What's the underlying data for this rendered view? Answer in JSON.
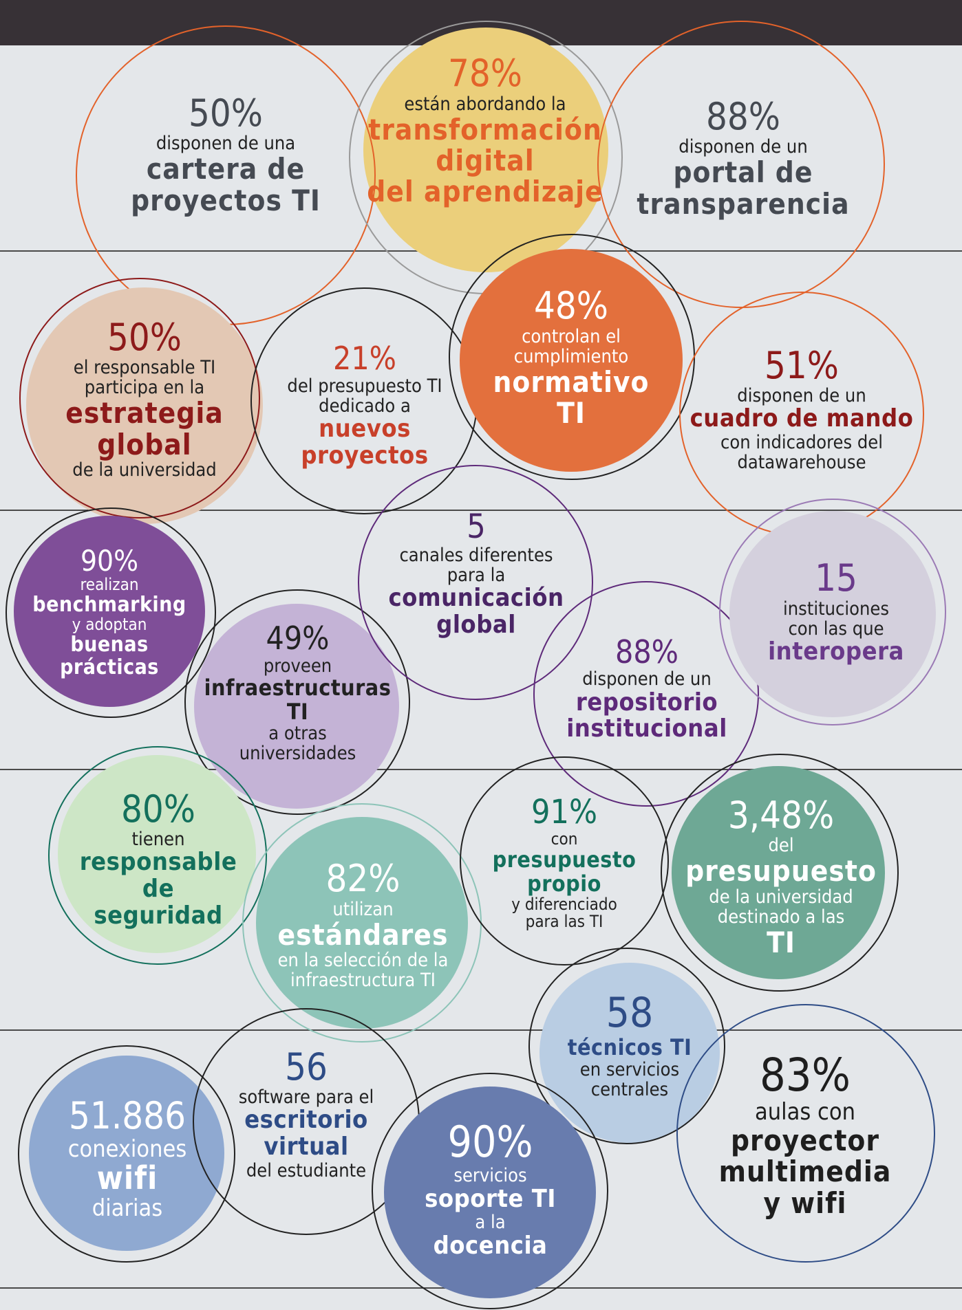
{
  "colors": {
    "background": "#e4e7ea",
    "top_bar": "#373136",
    "orange": "#e3622a",
    "dark_red": "#8d1a1a",
    "purple": "#5e2a7a",
    "green": "#13705c",
    "navy": "#2e4c86",
    "dark_gray": "#3e3e3e"
  },
  "stats": [
    {
      "number": "50%",
      "lines": [
        "disponen de una"
      ],
      "emphasis": [
        "cartera de",
        "proyectos TI"
      ]
    },
    {
      "number": "78%",
      "lines": [
        "están abordando la"
      ],
      "emphasis": [
        "transformación",
        "digital",
        "del aprendizaje"
      ]
    },
    {
      "number": "88%",
      "lines": [
        "disponen de un"
      ],
      "emphasis": [
        "portal de",
        "transparencia"
      ]
    },
    {
      "number": "50%",
      "lines": [
        "el responsable TI",
        "participa en la"
      ],
      "emphasis": [
        "estrategia",
        "global"
      ],
      "tail": [
        "de la universidad"
      ]
    },
    {
      "number": "21%",
      "lines": [
        "del presupuesto TI",
        "dedicado a"
      ],
      "emphasis": [
        "nuevos",
        "proyectos"
      ]
    },
    {
      "number": "48%",
      "lines": [
        "controlan el",
        "cumplimiento"
      ],
      "emphasis": [
        "normativo",
        "TI"
      ]
    },
    {
      "number": "51%",
      "lines": [
        "disponen de un"
      ],
      "emphasis": [
        "cuadro de mando"
      ],
      "tail": [
        "con indicadores del",
        "datawarehouse"
      ]
    },
    {
      "number": "90%",
      "lines": [
        "realizan"
      ],
      "emphasis": [
        "benchmarking"
      ],
      "tail": [
        "y adoptan"
      ],
      "emphasis2": [
        "buenas",
        "prácticas"
      ]
    },
    {
      "number": "5",
      "lines": [
        "canales diferentes",
        "para la"
      ],
      "emphasis": [
        "comunicación",
        "global"
      ]
    },
    {
      "number": "15",
      "lines": [
        "instituciones",
        "con las que"
      ],
      "emphasis": [
        "interopera"
      ]
    },
    {
      "number": "49%",
      "lines": [
        "proveen"
      ],
      "emphasis": [
        "infraestructuras",
        "TI"
      ],
      "tail": [
        "a otras",
        "universidades"
      ]
    },
    {
      "number": "88%",
      "lines": [
        "disponen de un"
      ],
      "emphasis": [
        "repositorio",
        "institucional"
      ]
    },
    {
      "number": "80%",
      "lines": [
        "tienen"
      ],
      "emphasis": [
        "responsable",
        "de",
        "seguridad"
      ]
    },
    {
      "number": "82%",
      "lines": [
        "utilizan"
      ],
      "emphasis": [
        "estándares"
      ],
      "tail": [
        "en la selección de la",
        "infraestructura TI"
      ]
    },
    {
      "number": "91%",
      "lines": [
        "con"
      ],
      "emphasis": [
        "presupuesto",
        "propio"
      ],
      "tail": [
        "y diferenciado",
        "para las TI"
      ]
    },
    {
      "number": "3,48%",
      "lines": [
        "del"
      ],
      "emphasis": [
        "presupuesto"
      ],
      "tail": [
        "de la universidad",
        "destinado a las"
      ],
      "emphasis2": [
        "TI"
      ]
    },
    {
      "number": "58",
      "lines": [],
      "emphasis": [
        "técnicos TI"
      ],
      "tail": [
        "en servicios",
        "centrales"
      ]
    },
    {
      "number": "56",
      "lines": [
        "software para el"
      ],
      "emphasis": [
        "escritorio",
        "virtual"
      ],
      "tail": [
        "del estudiante"
      ]
    },
    {
      "number": "51.886",
      "lines": [
        "conexiones"
      ],
      "emphasis": [
        "wifi"
      ],
      "tail": [
        "diarias"
      ]
    },
    {
      "number": "90%",
      "lines": [
        "servicios"
      ],
      "emphasis": [
        "soporte TI"
      ],
      "tail": [
        "a la"
      ],
      "emphasis2": [
        "docencia"
      ]
    },
    {
      "number": "83%",
      "lines": [
        "aulas con"
      ],
      "emphasis": [
        "proyector",
        "multimedia",
        "y wifi"
      ]
    }
  ]
}
